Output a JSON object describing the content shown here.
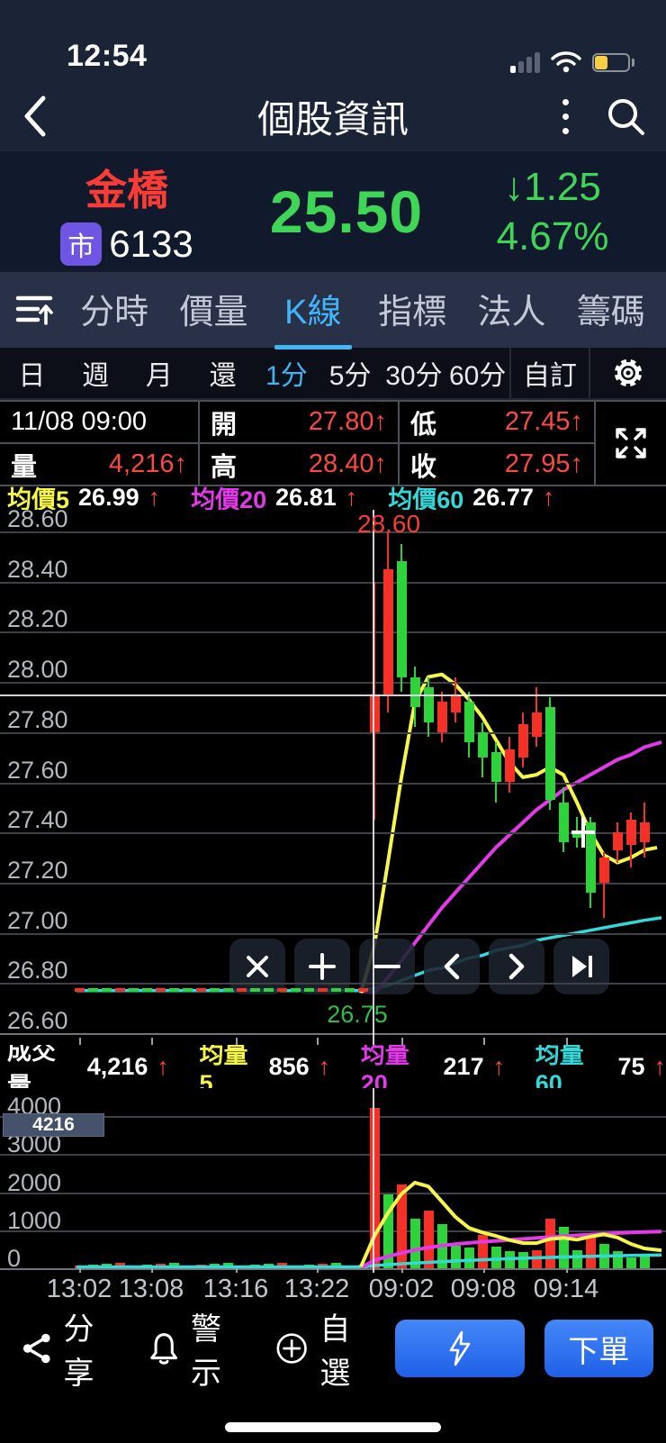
{
  "status_bar": {
    "time": "12:54"
  },
  "header": {
    "title": "個股資訊"
  },
  "stock": {
    "name": "金橋",
    "market_badge": "市",
    "code": "6133",
    "price": "25.50",
    "change_arrow": "↓",
    "change": "1.25",
    "change_pct": "4.67%",
    "up_down_color": "#3fd657"
  },
  "tabs": {
    "items": [
      {
        "label": "分時",
        "active": false
      },
      {
        "label": "價量",
        "active": false
      },
      {
        "label": "K線",
        "active": true
      },
      {
        "label": "指標",
        "active": false
      },
      {
        "label": "法人",
        "active": false
      },
      {
        "label": "籌碼",
        "active": false
      }
    ]
  },
  "periods": {
    "items": [
      {
        "label": "日",
        "active": false
      },
      {
        "label": "週",
        "active": false
      },
      {
        "label": "月",
        "active": false
      },
      {
        "label": "還",
        "active": false
      },
      {
        "label": "1分",
        "active": true
      },
      {
        "label": "5分",
        "active": false
      },
      {
        "label": "30分",
        "active": false
      },
      {
        "label": "60分",
        "active": false
      },
      {
        "label": "自訂",
        "active": false
      }
    ]
  },
  "ohlc": {
    "datetime": "11/08 09:00",
    "open_label": "開",
    "open": "27.80↑",
    "low_label": "低",
    "low": "27.45↑",
    "vol_label": "量",
    "vol": "4,216↑",
    "high_label": "高",
    "high": "28.40↑",
    "close_label": "收",
    "close": "27.95↑"
  },
  "ma_legend": {
    "ma5_label": "均價5",
    "ma5": "26.99",
    "ma20_label": "均價20",
    "ma20": "26.81",
    "ma60_label": "均價60",
    "ma60": "26.77",
    "arrow": "↑"
  },
  "vol_legend": {
    "vol_label": "成交量",
    "vol": "4,216",
    "ma5_label": "均量5",
    "ma5": "856",
    "ma20_label": "均量20",
    "ma20": "217",
    "ma60_label": "均量60",
    "ma60": "75",
    "arrow": "↑"
  },
  "bottom_bar": {
    "share": "分享",
    "alert": "警示",
    "watch": "自選",
    "order": "下單"
  },
  "chart_data": {
    "type": "candlestick+volume",
    "title": "金橋 6133 1分 K線",
    "colors": {
      "up": "#f53127",
      "down": "#2ed33c",
      "ma5": "#f6f74a",
      "ma20": "#e23ae8",
      "ma60": "#35d8d8"
    },
    "price_axis": {
      "min": 26.6,
      "max": 28.6,
      "step": 0.2,
      "ticks": [
        "28.60",
        "28.40",
        "28.20",
        "28.00",
        "27.80",
        "27.60",
        "27.40",
        "27.20",
        "27.00",
        "26.80",
        "26.60"
      ]
    },
    "volume_axis": {
      "min": 0,
      "max": 4000,
      "step": 1000,
      "ticks": [
        "4000",
        "3000",
        "2000",
        "1000",
        "0"
      ]
    },
    "x_labels": [
      "13:02",
      "13:08",
      "13:16",
      "13:22",
      "09:02",
      "09:08",
      "09:14"
    ],
    "prev_session": {
      "approx_price": 26.77,
      "bar_count": 22,
      "approx_volume": 35
    },
    "candles": [
      {
        "t": "09:00",
        "o": 27.8,
        "h": 28.4,
        "l": 27.45,
        "c": 27.95,
        "dir": "up",
        "vol": 4216,
        "vdir": "up"
      },
      {
        "t": "09:01",
        "o": 27.95,
        "h": 28.6,
        "l": 27.88,
        "c": 28.45,
        "dir": "up",
        "vol": 1950,
        "vdir": "down"
      },
      {
        "t": "09:02",
        "o": 28.48,
        "h": 28.55,
        "l": 27.96,
        "c": 28.02,
        "dir": "down",
        "vol": 2190,
        "vdir": "up"
      },
      {
        "t": "09:03",
        "o": 28.02,
        "h": 28.06,
        "l": 27.82,
        "c": 27.9,
        "dir": "down",
        "vol": 1310,
        "vdir": "down"
      },
      {
        "t": "09:04",
        "o": 27.98,
        "h": 28.02,
        "l": 27.78,
        "c": 27.84,
        "dir": "down",
        "vol": 1520,
        "vdir": "up"
      },
      {
        "t": "09:05",
        "o": 27.8,
        "h": 27.96,
        "l": 27.76,
        "c": 27.92,
        "dir": "up",
        "vol": 1170,
        "vdir": "down"
      },
      {
        "t": "09:06",
        "o": 27.88,
        "h": 28.02,
        "l": 27.84,
        "c": 27.95,
        "dir": "up",
        "vol": 580,
        "vdir": "down"
      },
      {
        "t": "09:07",
        "o": 27.92,
        "h": 27.96,
        "l": 27.7,
        "c": 27.76,
        "dir": "down",
        "vol": 550,
        "vdir": "down"
      },
      {
        "t": "09:08",
        "o": 27.8,
        "h": 27.84,
        "l": 27.62,
        "c": 27.7,
        "dir": "down",
        "vol": 880,
        "vdir": "up"
      },
      {
        "t": "09:09",
        "o": 27.72,
        "h": 27.76,
        "l": 27.52,
        "c": 27.6,
        "dir": "down",
        "vol": 575,
        "vdir": "down"
      },
      {
        "t": "09:10",
        "o": 27.6,
        "h": 27.78,
        "l": 27.56,
        "c": 27.73,
        "dir": "up",
        "vol": 450,
        "vdir": "down"
      },
      {
        "t": "09:11",
        "o": 27.7,
        "h": 27.88,
        "l": 27.66,
        "c": 27.83,
        "dir": "up",
        "vol": 420,
        "vdir": "down"
      },
      {
        "t": "09:12",
        "o": 27.78,
        "h": 27.98,
        "l": 27.74,
        "c": 27.88,
        "dir": "up",
        "vol": 475,
        "vdir": "up"
      },
      {
        "t": "09:13",
        "o": 27.9,
        "h": 27.94,
        "l": 27.49,
        "c": 27.53,
        "dir": "down",
        "vol": 1290,
        "vdir": "up"
      },
      {
        "t": "09:14",
        "o": 27.52,
        "h": 27.58,
        "l": 27.32,
        "c": 27.36,
        "dir": "down",
        "vol": 1090,
        "vdir": "down"
      },
      {
        "t": "09:15",
        "o": 27.4,
        "h": 27.46,
        "l": 27.34,
        "c": 27.38,
        "dir": "down",
        "vol": 475,
        "vdir": "down"
      },
      {
        "t": "09:16",
        "o": 27.44,
        "h": 27.46,
        "l": 27.1,
        "c": 27.16,
        "dir": "down",
        "vol": 900,
        "vdir": "up"
      },
      {
        "t": "09:17",
        "o": 27.2,
        "h": 27.32,
        "l": 27.06,
        "c": 27.3,
        "dir": "up",
        "vol": 650,
        "vdir": "down"
      },
      {
        "t": "09:18",
        "o": 27.33,
        "h": 27.44,
        "l": 27.28,
        "c": 27.4,
        "dir": "up",
        "vol": 445,
        "vdir": "down"
      },
      {
        "t": "09:19",
        "o": 27.35,
        "h": 27.48,
        "l": 27.26,
        "c": 27.45,
        "dir": "up",
        "vol": 290,
        "vdir": "down"
      },
      {
        "t": "09:20",
        "o": 27.36,
        "h": 27.52,
        "l": 27.3,
        "c": 27.44,
        "dir": "up",
        "vol": 330,
        "vdir": "down"
      }
    ],
    "ma_price": {
      "ma5": [
        26.95,
        27.28,
        27.62,
        27.92,
        28.02,
        28.03,
        27.99,
        27.93,
        27.86,
        27.77,
        27.68,
        27.62,
        27.63,
        27.66,
        27.63,
        27.52,
        27.4,
        27.31,
        27.28,
        27.3,
        27.33
      ],
      "ma20": [
        26.76,
        26.82,
        26.89,
        26.96,
        27.03,
        27.1,
        27.16,
        27.22,
        27.28,
        27.34,
        27.39,
        27.44,
        27.49,
        27.53,
        27.57,
        27.6,
        27.63,
        27.66,
        27.69,
        27.71,
        27.74
      ],
      "ma60": [
        26.78,
        26.79,
        26.81,
        26.83,
        26.85,
        26.86,
        26.88,
        26.9,
        26.91,
        26.93,
        26.94,
        26.95,
        26.97,
        26.98,
        26.99,
        27.0,
        27.01,
        27.02,
        27.03,
        27.04,
        27.05
      ]
    },
    "ma_volume": {
      "ma5": [
        850,
        1450,
        1950,
        2250,
        2150,
        1750,
        1350,
        1060,
        940,
        850,
        740,
        660,
        660,
        770,
        800,
        750,
        830,
        890,
        810,
        640,
        520
      ],
      "ma20": [
        210,
        310,
        400,
        480,
        545,
        595,
        635,
        665,
        695,
        720,
        745,
        770,
        795,
        820,
        845,
        865,
        885,
        905,
        925,
        940,
        955
      ],
      "ma60": [
        70,
        95,
        115,
        135,
        155,
        175,
        192,
        208,
        222,
        236,
        250,
        262,
        274,
        285,
        295,
        305,
        313,
        321,
        329,
        336,
        343
      ]
    },
    "markers": {
      "high_label": "28.60",
      "low_label": "26.75",
      "vol_badge": "4216",
      "cross_marker": {
        "x_index": 15,
        "price": 27.4
      }
    },
    "crosshair": {
      "candle_index": 0,
      "price": 27.95
    }
  }
}
